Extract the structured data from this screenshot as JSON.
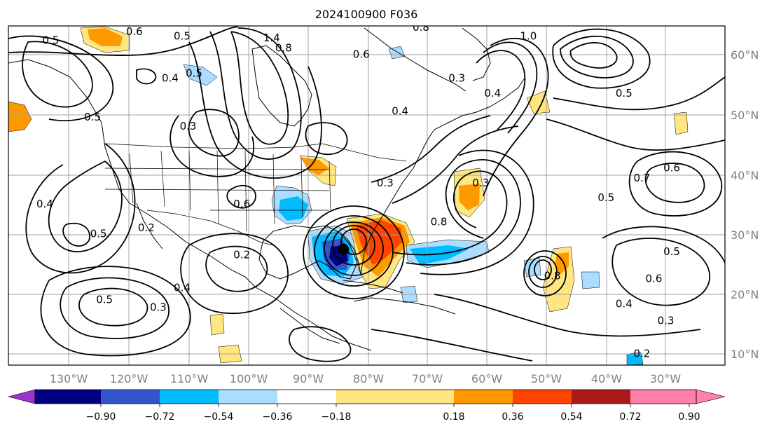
{
  "title": "2024100900 F036",
  "lat_labels": [
    "60°N",
    "50°N",
    "40°N",
    "30°N",
    "20°N",
    "10°N"
  ],
  "lon_labels": [
    "130°W",
    "120°W",
    "110°W",
    "100°W",
    "90°W",
    "80°W",
    "70°W",
    "60°W",
    "50°W",
    "40°W",
    "30°W"
  ],
  "colorbar": {
    "ticks": [
      "−0.90",
      "−0.72",
      "−0.54",
      "−0.36",
      "−0.18",
      "0.18",
      "0.36",
      "0.54",
      "0.72",
      "0.90"
    ],
    "colors": [
      "#9933cc",
      "#000080",
      "#3355cc",
      "#00bbff",
      "#aaddff",
      "#ffffff",
      "#ffe680",
      "#ff9900",
      "#ff4400",
      "#aa1a1a",
      "#ff80aa"
    ]
  },
  "contour_labels": [
    {
      "text": "0.6",
      "lon": -119,
      "lat": 63.3
    },
    {
      "text": "0.5",
      "lon": -111,
      "lat": 62.5
    },
    {
      "text": "0.5",
      "lon": -133,
      "lat": 61.8
    },
    {
      "text": "1.4",
      "lon": -96,
      "lat": 62.2
    },
    {
      "text": "0.8",
      "lon": -94,
      "lat": 60.5
    },
    {
      "text": "0.6",
      "lon": -81,
      "lat": 59.5
    },
    {
      "text": "0.8",
      "lon": -71,
      "lat": 64
    },
    {
      "text": "1.0",
      "lon": -53,
      "lat": 62.5
    },
    {
      "text": "0.4",
      "lon": -113,
      "lat": 55.5
    },
    {
      "text": "0.5",
      "lon": -109,
      "lat": 56.3
    },
    {
      "text": "0.3",
      "lon": -110,
      "lat": 47.5
    },
    {
      "text": "0.5",
      "lon": -126,
      "lat": 49
    },
    {
      "text": "0.3",
      "lon": -65,
      "lat": 55.5
    },
    {
      "text": "0.4",
      "lon": -59,
      "lat": 53
    },
    {
      "text": "0.3",
      "lon": -77,
      "lat": 38
    },
    {
      "text": "0.3",
      "lon": -61,
      "lat": 38
    },
    {
      "text": "0.8",
      "lon": -68,
      "lat": 31.5
    },
    {
      "text": "0.6",
      "lon": -101,
      "lat": 34.5
    },
    {
      "text": "0.2",
      "lon": -117,
      "lat": 30.5
    },
    {
      "text": "0.5",
      "lon": -125,
      "lat": 29.5
    },
    {
      "text": "0.4",
      "lon": -134,
      "lat": 34.5
    },
    {
      "text": "0.2",
      "lon": -101,
      "lat": 26
    },
    {
      "text": "0.4",
      "lon": -111,
      "lat": 20.5
    },
    {
      "text": "0.5",
      "lon": -124,
      "lat": 18.5
    },
    {
      "text": "0.3",
      "lon": -115,
      "lat": 17.2
    },
    {
      "text": "0.5",
      "lon": -37,
      "lat": 53
    },
    {
      "text": "0.6",
      "lon": -29,
      "lat": 40.5
    },
    {
      "text": "0.7",
      "lon": -34,
      "lat": 38.8
    },
    {
      "text": "0.5",
      "lon": -40,
      "lat": 35.5
    },
    {
      "text": "0.5",
      "lon": -29,
      "lat": 26.5
    },
    {
      "text": "0.6",
      "lon": -32,
      "lat": 22
    },
    {
      "text": "0.4",
      "lon": -37,
      "lat": 17.8
    },
    {
      "text": "0.3",
      "lon": -30,
      "lat": 15
    },
    {
      "text": "0.2",
      "lon": -34,
      "lat": 9.5
    },
    {
      "text": "0.8",
      "lon": -49,
      "lat": 22.5
    },
    {
      "text": "0.4",
      "lon": -74.5,
      "lat": 50
    }
  ],
  "storm_marker": {
    "lon": -84,
    "lat": 27.5
  }
}
